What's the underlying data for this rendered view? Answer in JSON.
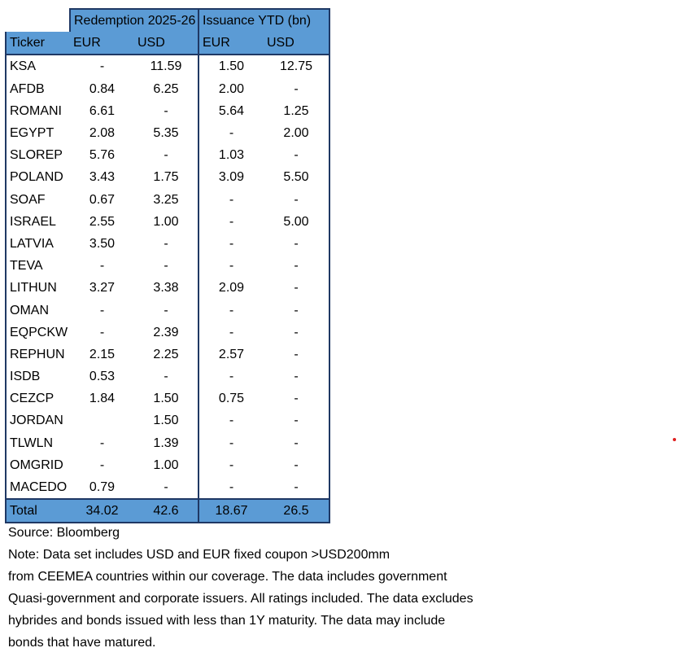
{
  "chart_data": {
    "type": "table",
    "group_headers": [
      "Redemption 2025-26",
      "Issuance YTD (bn)"
    ],
    "columns": [
      "Ticker",
      "EUR",
      "USD",
      "EUR",
      "USD"
    ],
    "rows": [
      [
        "KSA",
        "-",
        "11.59",
        "1.50",
        "12.75"
      ],
      [
        "AFDB",
        "0.84",
        "6.25",
        "2.00",
        "-"
      ],
      [
        "ROMANI",
        "6.61",
        "-",
        "5.64",
        "1.25"
      ],
      [
        "EGYPT",
        "2.08",
        "5.35",
        "-",
        "2.00"
      ],
      [
        "SLOREP",
        "5.76",
        "-",
        "1.03",
        "-"
      ],
      [
        "POLAND",
        "3.43",
        "1.75",
        "3.09",
        "5.50"
      ],
      [
        "SOAF",
        "0.67",
        "3.25",
        "-",
        "-"
      ],
      [
        "ISRAEL",
        "2.55",
        "1.00",
        "-",
        "5.00"
      ],
      [
        "LATVIA",
        "3.50",
        "-",
        "-",
        "-"
      ],
      [
        "TEVA",
        "-",
        "-",
        "-",
        "-"
      ],
      [
        "LITHUN",
        "3.27",
        "3.38",
        "2.09",
        "-"
      ],
      [
        "OMAN",
        "-",
        "-",
        "-",
        "-"
      ],
      [
        "EQPCKW",
        "-",
        "2.39",
        "-",
        "-"
      ],
      [
        "REPHUN",
        "2.15",
        "2.25",
        "2.57",
        "-"
      ],
      [
        "ISDB",
        "0.53",
        "-",
        "-",
        "-"
      ],
      [
        "CEZCP",
        "1.84",
        "1.50",
        "0.75",
        "-"
      ],
      [
        "JORDAN",
        "",
        "1.50",
        "-",
        "-"
      ],
      [
        "TLWLN",
        "-",
        "1.39",
        "-",
        "-"
      ],
      [
        "OMGRID",
        "-",
        "1.00",
        "-",
        "-"
      ],
      [
        "MACEDO",
        "0.79",
        "-",
        "-",
        "-"
      ]
    ],
    "total": [
      "Total",
      "34.02",
      "42.6",
      "18.67",
      "26.5"
    ]
  },
  "notes": [
    "Source: Bloomberg",
    "Note: Data set includes USD and EUR fixed coupon >USD200mm",
    "from CEEMEA countries within our coverage. The data includes government",
    "Quasi-government and corporate issuers. All ratings included. The data excludes",
    "hybrides and bonds issued with less than 1Y maturity. The data may include",
    "bonds that have matured."
  ],
  "colors": {
    "header_fill": "#5b9bd5",
    "border": "#1f3864",
    "marker_dot": "#e02020"
  }
}
